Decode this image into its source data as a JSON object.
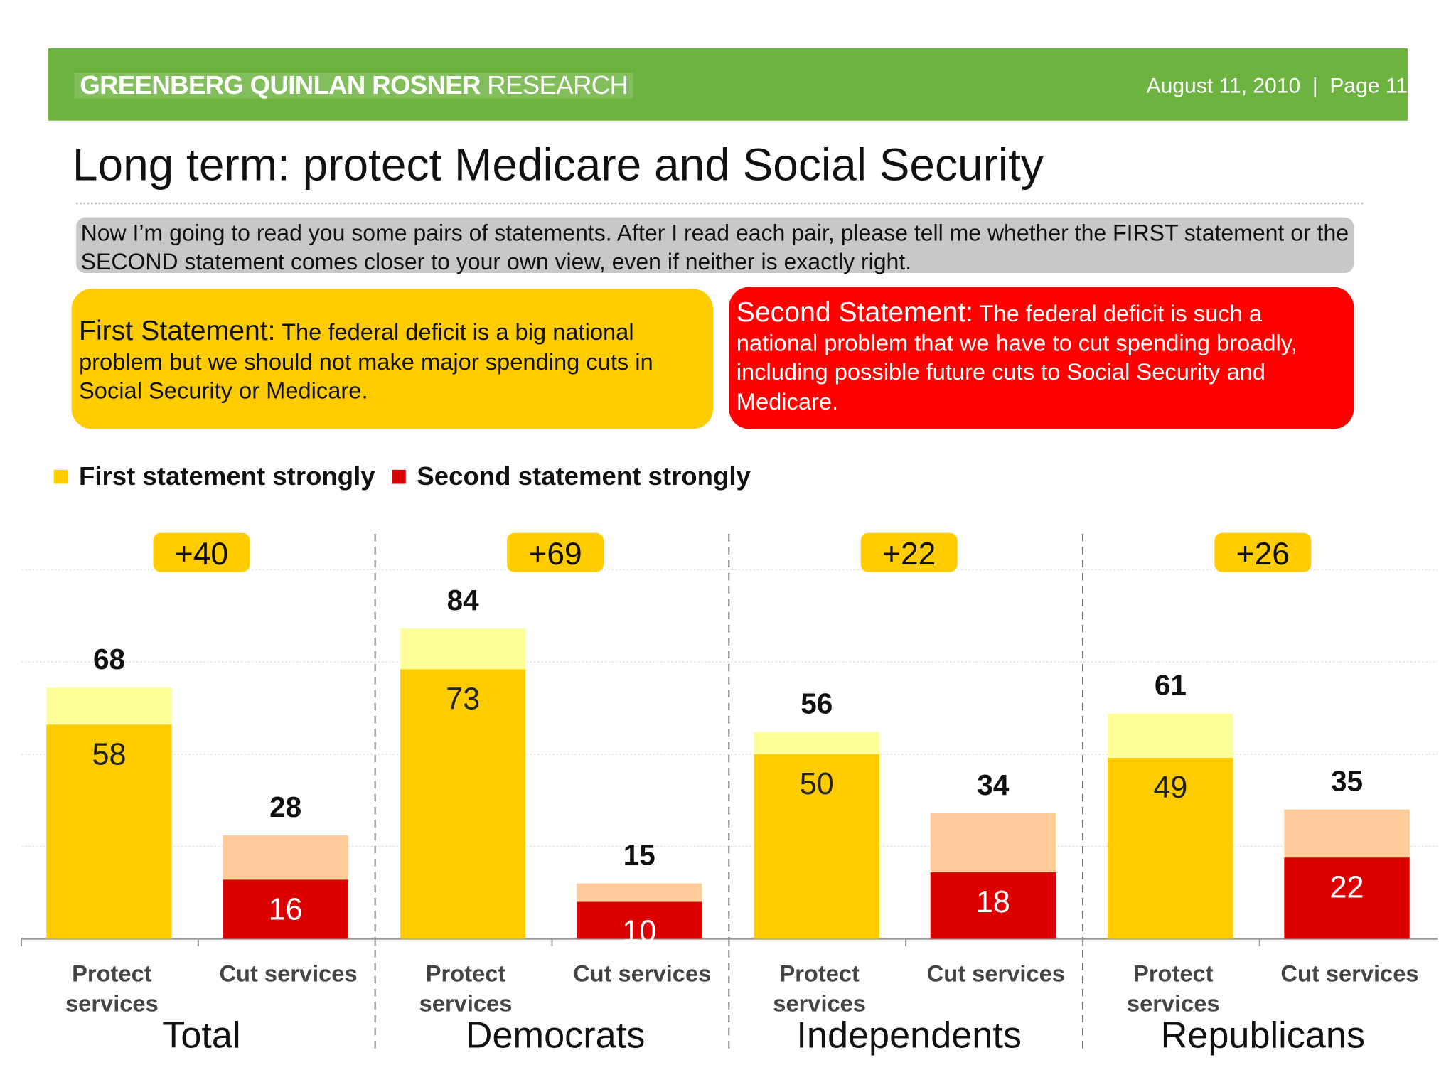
{
  "header": {
    "brand_bold": "GREENBERG QUINLAN ROSNER",
    "brand_light": "RESEARCH",
    "date": "August 11, 2010",
    "separator": "|",
    "page": "Page 11",
    "color": "#6db33f"
  },
  "title": "Long term: protect Medicare and Social Security",
  "question": "Now I’m going to read you some pairs of statements. After I read each pair, please tell me whether the FIRST statement or the SECOND statement comes closer to your own view, even if neither is exactly right.",
  "statements": [
    {
      "lead": "First Statement:",
      "text": " The federal deficit is a big national problem but we should not make major spending cuts in Social Security or Medicare.",
      "color": "#ffcc00"
    },
    {
      "lead": "Second Statement:",
      "text": " The federal deficit is such a national problem that we have to cut spending broadly, including possible future cuts to Social Security and Medicare.",
      "color": "#ff0000"
    }
  ],
  "chart_data": {
    "type": "bar",
    "stacked": true,
    "legend": [
      {
        "label": "First statement strongly",
        "color": "#ffcc00"
      },
      {
        "label": "Second statement strongly",
        "color": "#dd0000"
      }
    ],
    "legend_position": "top-left",
    "grid": true,
    "ylim": [
      0,
      100
    ],
    "groups": [
      {
        "name": "Total",
        "net": "+40",
        "bars": [
          {
            "label": "Protect services",
            "total": 68,
            "strong": 58,
            "side": "first"
          },
          {
            "label": "Cut services",
            "total": 28,
            "strong": 16,
            "side": "second"
          }
        ]
      },
      {
        "name": "Democrats",
        "net": "+69",
        "bars": [
          {
            "label": "Protect services",
            "total": 84,
            "strong": 73,
            "side": "first"
          },
          {
            "label": "Cut services",
            "total": 15,
            "strong": 10,
            "side": "second"
          }
        ]
      },
      {
        "name": "Independents",
        "net": "+22",
        "bars": [
          {
            "label": "Protect services",
            "total": 56,
            "strong": 50,
            "side": "first"
          },
          {
            "label": "Cut services",
            "total": 34,
            "strong": 18,
            "side": "second"
          }
        ]
      },
      {
        "name": "Republicans",
        "net": "+26",
        "bars": [
          {
            "label": "Protect services",
            "total": 61,
            "strong": 49,
            "side": "first"
          },
          {
            "label": "Cut services",
            "total": 35,
            "strong": 22,
            "side": "second"
          }
        ]
      }
    ],
    "colors": {
      "first_strong": "#ffcc00",
      "first_total": "#ffff99",
      "second_strong": "#dd0000",
      "second_total": "#ffcc99",
      "net_badge": "#ffcc00"
    }
  }
}
